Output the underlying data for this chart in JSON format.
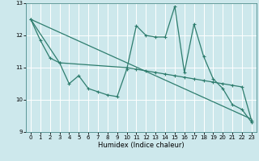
{
  "xlabel": "Humidex (Indice chaleur)",
  "xlim": [
    -0.5,
    23.5
  ],
  "ylim": [
    9,
    13
  ],
  "yticks": [
    9,
    10,
    11,
    12,
    13
  ],
  "xticks": [
    0,
    1,
    2,
    3,
    4,
    5,
    6,
    7,
    8,
    9,
    10,
    11,
    12,
    13,
    14,
    15,
    16,
    17,
    18,
    19,
    20,
    21,
    22,
    23
  ],
  "bg_color": "#cde8ec",
  "grid_color": "#b0d4d8",
  "line_color": "#2e7d6e",
  "line1_x": [
    0,
    1,
    2,
    3,
    4,
    5,
    6,
    7,
    8,
    9,
    10,
    11,
    12,
    13,
    14,
    15,
    16,
    17,
    18,
    19,
    20,
    21,
    22,
    23
  ],
  "line1_y": [
    12.5,
    11.85,
    11.3,
    11.15,
    10.5,
    10.75,
    10.35,
    10.25,
    10.15,
    10.1,
    10.95,
    12.3,
    12.0,
    11.95,
    11.95,
    12.9,
    10.85,
    12.35,
    11.35,
    10.65,
    10.35,
    9.85,
    9.7,
    9.3
  ],
  "line2_x": [
    0,
    3,
    10,
    11,
    12,
    13,
    14,
    15,
    16,
    17,
    18,
    19,
    20,
    21,
    22,
    23
  ],
  "line2_y": [
    12.5,
    11.15,
    11.0,
    10.95,
    10.9,
    10.85,
    10.8,
    10.75,
    10.7,
    10.65,
    10.6,
    10.55,
    10.5,
    10.45,
    10.4,
    9.35
  ],
  "line3_x": [
    0,
    23
  ],
  "line3_y": [
    12.5,
    9.4
  ]
}
